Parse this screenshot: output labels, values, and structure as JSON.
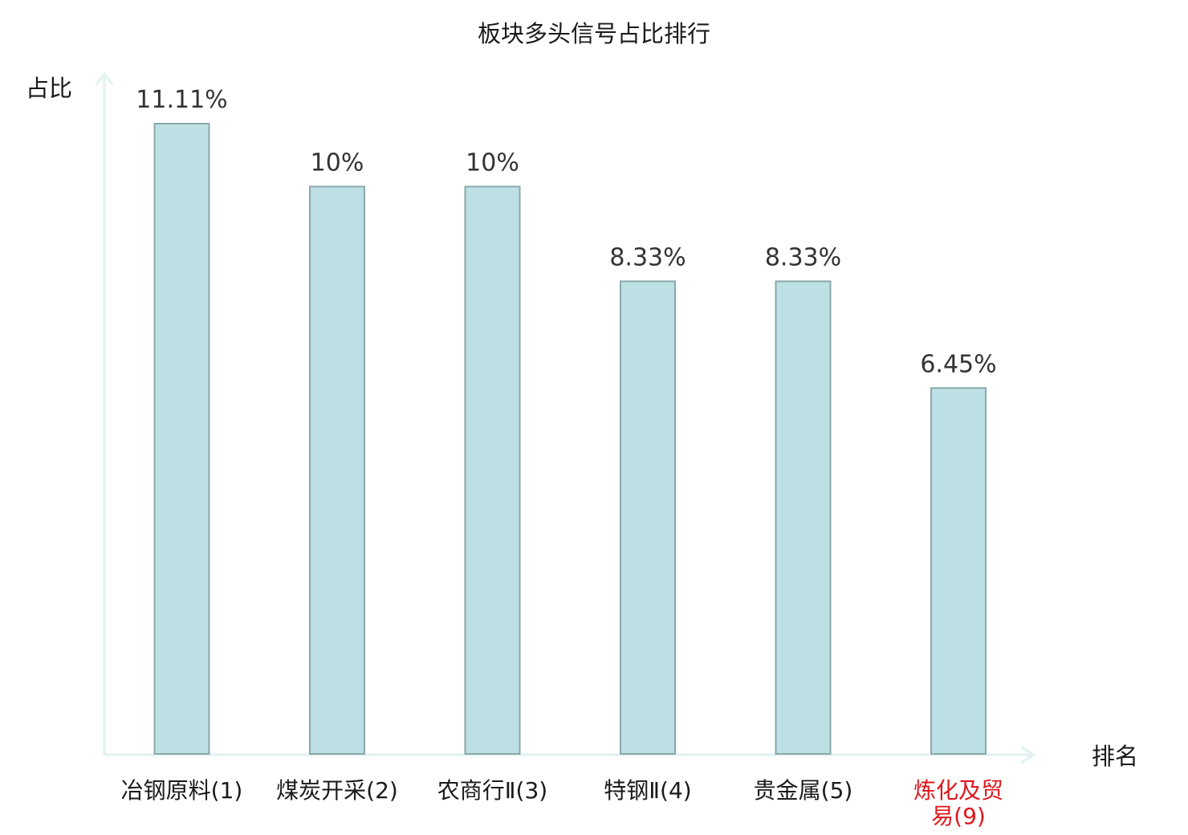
{
  "chart_data": {
    "type": "bar",
    "title": "板块多头信号占比排行",
    "xlabel": "排名",
    "ylabel": "占比",
    "categories": [
      {
        "label_lines": [
          "冶钢原料(1)"
        ],
        "highlight": false
      },
      {
        "label_lines": [
          "煤炭开采(2)"
        ],
        "highlight": false
      },
      {
        "label_lines": [
          "农商行Ⅱ(3)"
        ],
        "highlight": false
      },
      {
        "label_lines": [
          "特钢Ⅱ(4)"
        ],
        "highlight": false
      },
      {
        "label_lines": [
          "贵金属(5)"
        ],
        "highlight": false
      },
      {
        "label_lines": [
          "炼化及贸",
          "易(9)"
        ],
        "highlight": true
      }
    ],
    "values": [
      11.11,
      10,
      10,
      8.33,
      8.33,
      6.45
    ],
    "value_labels": [
      "11.11%",
      "10%",
      "10%",
      "8.33%",
      "8.33%",
      "6.45%"
    ],
    "ylim": [
      0,
      11.11
    ],
    "grid": false,
    "legend": "none",
    "colors": {
      "bar_fill": "#bce0e3",
      "bar_stroke": "#8aa8ab",
      "axis": "#dff2f0",
      "text": "#1a1a1a",
      "value_text": "#333333",
      "highlight_text": "#e0161b"
    }
  }
}
